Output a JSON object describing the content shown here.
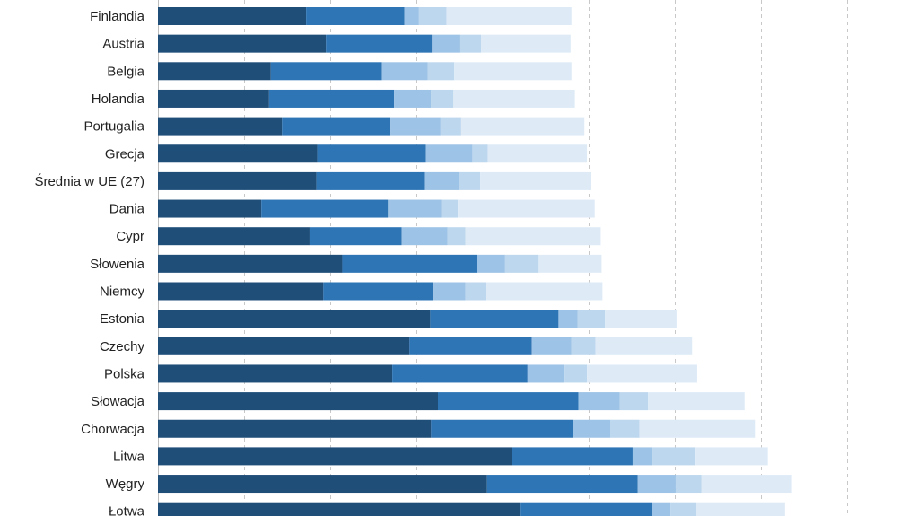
{
  "chart_data": {
    "type": "bar",
    "orientation": "horizontal",
    "stacked": true,
    "grid": true,
    "categories": [
      "Finlandia",
      "Austria",
      "Belgia",
      "Holandia",
      "Portugalia",
      "Grecja",
      "Średnia w UE (27)",
      "Dania",
      "Cypr",
      "Słowenia",
      "Niemcy",
      "Estonia",
      "Czechy",
      "Polska",
      "Słowacja",
      "Chorwacja",
      "Litwa",
      "Węgry",
      "Łotwa"
    ],
    "series": [
      {
        "color": "#1f4e79",
        "values": [
          17.2,
          19.5,
          13.1,
          12.9,
          14.4,
          18.5,
          18.4,
          12.0,
          17.6,
          21.4,
          19.2,
          31.6,
          29.2,
          27.2,
          32.5,
          31.7,
          41.1,
          38.2,
          42.0
        ]
      },
      {
        "color": "#2e75b6",
        "values": [
          11.4,
          12.3,
          12.9,
          14.5,
          12.6,
          12.6,
          12.6,
          14.7,
          10.7,
          15.6,
          12.8,
          14.9,
          14.2,
          15.7,
          16.3,
          16.5,
          14.0,
          17.5,
          15.3
        ]
      },
      {
        "color": "#9dc3e6",
        "values": [
          1.7,
          3.3,
          5.3,
          4.3,
          5.8,
          5.4,
          3.9,
          6.2,
          5.3,
          3.3,
          3.7,
          2.2,
          4.6,
          4.2,
          4.8,
          4.3,
          2.3,
          4.4,
          2.2
        ]
      },
      {
        "color": "#bdd7ee",
        "values": [
          3.2,
          2.4,
          3.1,
          2.6,
          2.4,
          1.8,
          2.5,
          1.9,
          2.1,
          3.9,
          2.4,
          3.2,
          2.8,
          2.7,
          3.3,
          3.4,
          4.9,
          3.0,
          3.0
        ]
      },
      {
        "color": "#deebf7",
        "values": [
          14.5,
          10.4,
          13.6,
          14.1,
          14.3,
          11.5,
          12.9,
          15.9,
          15.7,
          7.3,
          13.5,
          8.3,
          11.2,
          12.8,
          11.2,
          13.4,
          8.5,
          10.4,
          10.3
        ]
      }
    ],
    "xlim": [
      0,
      80
    ],
    "grid_step": 10,
    "legend": "none"
  }
}
